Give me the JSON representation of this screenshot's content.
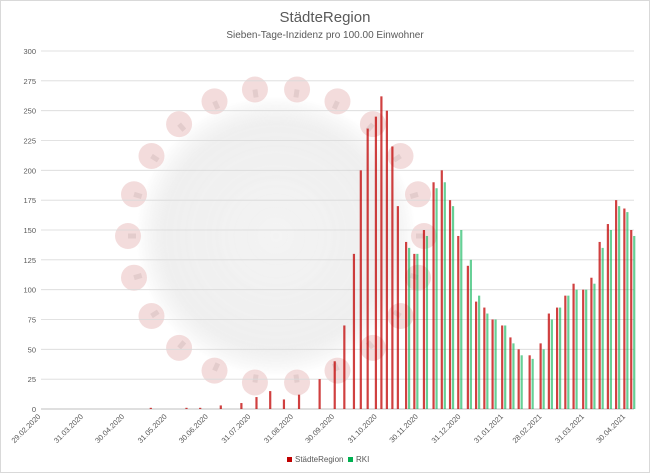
{
  "chart_data": {
    "type": "bar",
    "title": "StädteRegion",
    "subtitle": "Sieben-Tage-Inzidenz pro 100.00 Einwohner",
    "ylim": [
      0,
      300
    ],
    "y_ticks": [
      0,
      25,
      50,
      75,
      100,
      125,
      150,
      175,
      200,
      225,
      250,
      275,
      300
    ],
    "x_range": [
      "2020-02-29",
      "2021-05-06"
    ],
    "x_ticks": [
      "29.02.2020",
      "31.03.2020",
      "30.04.2020",
      "31.05.2020",
      "30.06.2020",
      "31.07.2020",
      "31.08.2020",
      "30.09.2020",
      "31.10.2020",
      "30.11.2020",
      "31.12.2020",
      "31.01.2021",
      "28.02.2021",
      "31.03.2021",
      "30.04.2021"
    ],
    "grid": true,
    "legend_position": "bottom",
    "series": [
      {
        "name": "StädteRegion",
        "color": "#c00000",
        "points": [
          [
            "2020-05-20",
            1
          ],
          [
            "2020-06-15",
            1
          ],
          [
            "2020-06-25",
            1
          ],
          [
            "2020-07-10",
            3
          ],
          [
            "2020-07-25",
            5
          ],
          [
            "2020-08-05",
            10
          ],
          [
            "2020-08-15",
            15
          ],
          [
            "2020-08-25",
            8
          ],
          [
            "2020-09-05",
            12
          ],
          [
            "2020-09-20",
            25
          ],
          [
            "2020-10-01",
            40
          ],
          [
            "2020-10-08",
            70
          ],
          [
            "2020-10-15",
            130
          ],
          [
            "2020-10-20",
            200
          ],
          [
            "2020-10-25",
            235
          ],
          [
            "2020-10-31",
            245
          ],
          [
            "2020-11-04",
            262
          ],
          [
            "2020-11-08",
            250
          ],
          [
            "2020-11-12",
            220
          ],
          [
            "2020-11-16",
            170
          ],
          [
            "2020-11-22",
            140
          ],
          [
            "2020-11-28",
            130
          ],
          [
            "2020-12-05",
            150
          ],
          [
            "2020-12-12",
            190
          ],
          [
            "2020-12-18",
            200
          ],
          [
            "2020-12-24",
            175
          ],
          [
            "2020-12-30",
            145
          ],
          [
            "2021-01-06",
            120
          ],
          [
            "2021-01-12",
            90
          ],
          [
            "2021-01-18",
            85
          ],
          [
            "2021-01-24",
            75
          ],
          [
            "2021-01-31",
            70
          ],
          [
            "2021-02-06",
            60
          ],
          [
            "2021-02-12",
            50
          ],
          [
            "2021-02-20",
            45
          ],
          [
            "2021-02-28",
            55
          ],
          [
            "2021-03-06",
            80
          ],
          [
            "2021-03-12",
            85
          ],
          [
            "2021-03-18",
            95
          ],
          [
            "2021-03-24",
            105
          ],
          [
            "2021-03-31",
            100
          ],
          [
            "2021-04-06",
            110
          ],
          [
            "2021-04-12",
            140
          ],
          [
            "2021-04-18",
            155
          ],
          [
            "2021-04-24",
            175
          ],
          [
            "2021-04-30",
            168
          ],
          [
            "2021-05-05",
            150
          ]
        ]
      },
      {
        "name": "RKI",
        "color": "#00b050",
        "points": [
          [
            "2020-11-22",
            135
          ],
          [
            "2020-11-28",
            130
          ],
          [
            "2020-12-05",
            145
          ],
          [
            "2020-12-12",
            185
          ],
          [
            "2020-12-18",
            190
          ],
          [
            "2020-12-24",
            170
          ],
          [
            "2020-12-30",
            150
          ],
          [
            "2021-01-06",
            125
          ],
          [
            "2021-01-12",
            95
          ],
          [
            "2021-01-18",
            80
          ],
          [
            "2021-01-24",
            75
          ],
          [
            "2021-01-31",
            70
          ],
          [
            "2021-02-06",
            55
          ],
          [
            "2021-02-12",
            45
          ],
          [
            "2021-02-20",
            42
          ],
          [
            "2021-02-28",
            50
          ],
          [
            "2021-03-06",
            75
          ],
          [
            "2021-03-12",
            85
          ],
          [
            "2021-03-18",
            95
          ],
          [
            "2021-03-24",
            100
          ],
          [
            "2021-03-31",
            100
          ],
          [
            "2021-04-06",
            105
          ],
          [
            "2021-04-12",
            135
          ],
          [
            "2021-04-18",
            150
          ],
          [
            "2021-04-24",
            170
          ],
          [
            "2021-04-30",
            165
          ],
          [
            "2021-05-05",
            145
          ]
        ]
      }
    ]
  }
}
